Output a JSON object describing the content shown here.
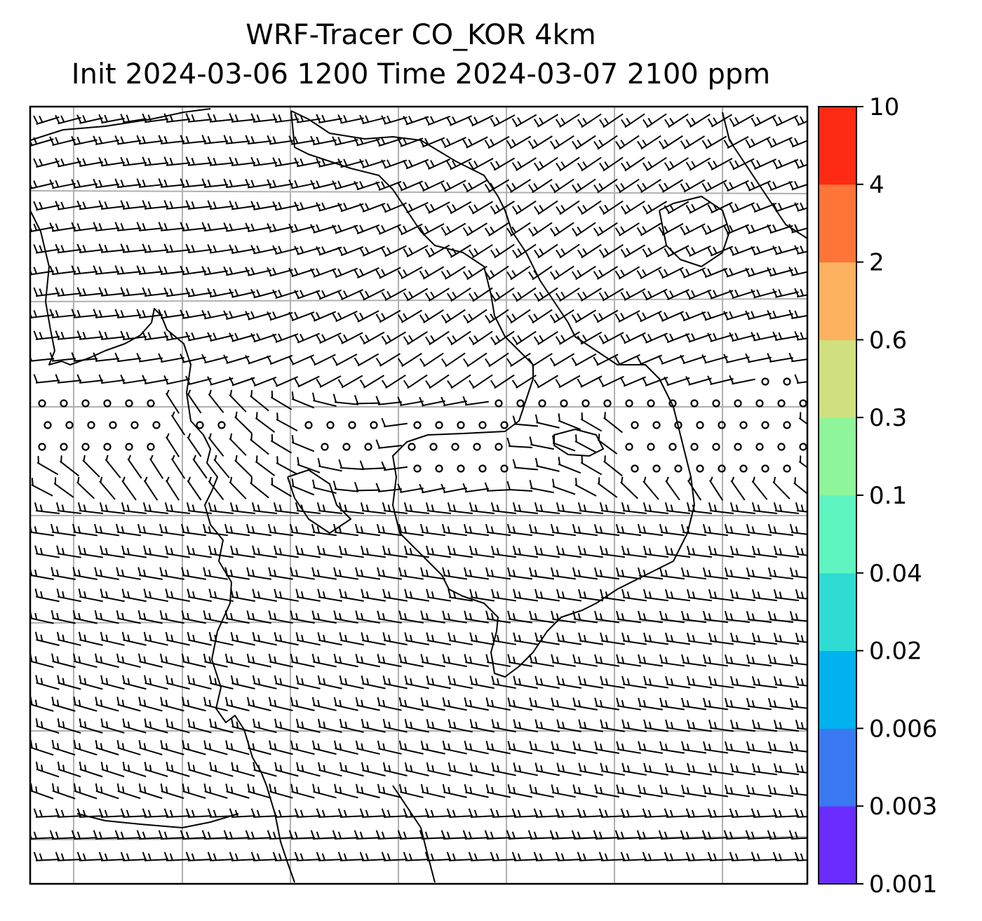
{
  "title": {
    "line1": "WRF-Tracer CO_KOR 4km",
    "line2": "Init 2024-03-06 1200 Time 2024-03-07 2100 ppm"
  },
  "map": {
    "variable": "CO_KOR",
    "units": "ppm",
    "overlay": "wind barbs",
    "calm_marker": "circle",
    "gridlines": true,
    "coastlines": true,
    "tracer_shading_visible": false
  },
  "colorbar": {
    "orientation": "vertical",
    "placement": "right",
    "tick_labels": [
      "0.001",
      "0.003",
      "0.006",
      "0.02",
      "0.04",
      "0.1",
      "0.3",
      "0.6",
      "2",
      "4",
      "10"
    ],
    "colors": [
      "#6a2cff",
      "#3a78f2",
      "#00b2ee",
      "#2fdcd4",
      "#5ef5c0",
      "#8ef59a",
      "#d0e07e",
      "#fcb25f",
      "#ff7438",
      "#ff2a14"
    ]
  }
}
